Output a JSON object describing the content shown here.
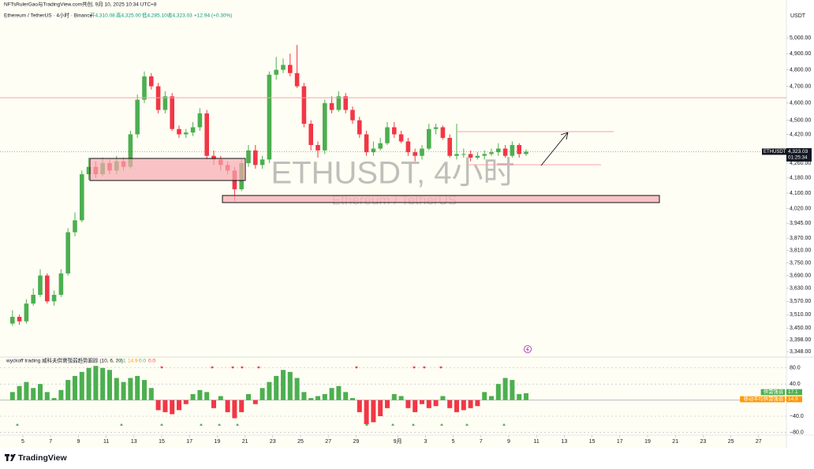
{
  "header": {
    "attribution": "NFTsRulerGao与TradingView.com共创, 9月 10, 2025 10:34 UTC+8",
    "symbol": "Ethereum / TetherUS · 4小时 · Binance",
    "open": "开4,310.08",
    "high": "高4,325.00",
    "low": "低4,285.10",
    "close": "收4,323.03",
    "change": "+12.94 (+0.30%)"
  },
  "brand": "TradingView",
  "chart_data": [
    {
      "type": "candlestick",
      "watermark_title": "ETHUSDT, 4小时",
      "watermark_subtitle": "Ethereum / TetherUS",
      "axis_unit": "USDT",
      "log_scale": true,
      "up_color": "#4caf50",
      "down_color": "#f23645",
      "open": [
        3470,
        3500,
        3480,
        3560,
        3600,
        3690,
        3570,
        3600,
        3700,
        3900,
        3960,
        4200,
        4240,
        4200,
        4260,
        4220,
        4270,
        4240,
        4420,
        4620,
        4760,
        4700,
        4560,
        4640,
        4450,
        4420,
        4430,
        4460,
        4540,
        4300,
        4280,
        4250,
        4220,
        4120,
        4260,
        4330,
        4250,
        4280,
        4770,
        4800,
        4830,
        4780,
        4700,
        4480,
        4360,
        4330,
        4600,
        4560,
        4640,
        4560,
        4500,
        4420,
        4320,
        4340,
        4370,
        4460,
        4420,
        4380,
        4320,
        4300,
        4340,
        4450,
        4460,
        4400,
        4300,
        4310,
        4310,
        4290,
        4300,
        4310,
        4320,
        4340,
        4300,
        4360,
        4310
      ],
      "high": [
        3530,
        3510,
        3580,
        3630,
        3720,
        3700,
        3620,
        3720,
        3920,
        4000,
        4220,
        4290,
        4270,
        4290,
        4280,
        4300,
        4290,
        4440,
        4650,
        4790,
        4780,
        4720,
        4670,
        4660,
        4470,
        4450,
        4490,
        4570,
        4560,
        4330,
        4300,
        4270,
        4240,
        4280,
        4360,
        4360,
        4300,
        4790,
        4880,
        4870,
        4900,
        4955,
        4720,
        4500,
        4380,
        4620,
        4640,
        4670,
        4660,
        4580,
        4520,
        4440,
        4380,
        4400,
        4490,
        4490,
        4440,
        4400,
        4340,
        4360,
        4480,
        4480,
        4470,
        4420,
        4480,
        4340,
        4330,
        4320,
        4330,
        4340,
        4370,
        4360,
        4380,
        4370,
        4335
      ],
      "low": [
        3460,
        3465,
        3470,
        3550,
        3590,
        3560,
        3550,
        3590,
        3690,
        3880,
        3950,
        4170,
        4180,
        4190,
        4200,
        4200,
        4220,
        4230,
        4400,
        4600,
        4680,
        4540,
        4540,
        4440,
        4400,
        4400,
        4410,
        4440,
        4280,
        4250,
        4220,
        4200,
        4060,
        4110,
        4240,
        4230,
        4230,
        4260,
        4740,
        4780,
        4760,
        4690,
        4460,
        4330,
        4290,
        4310,
        4540,
        4550,
        4540,
        4480,
        4400,
        4300,
        4300,
        4330,
        4360,
        4400,
        4370,
        4300,
        4270,
        4280,
        4330,
        4420,
        4390,
        4290,
        4280,
        4290,
        4270,
        4280,
        4280,
        4300,
        4300,
        4290,
        4290,
        4290,
        4300
      ],
      "close": [
        3500,
        3480,
        3560,
        3600,
        3690,
        3570,
        3600,
        3700,
        3900,
        3960,
        4200,
        4240,
        4200,
        4260,
        4220,
        4270,
        4240,
        4420,
        4620,
        4760,
        4700,
        4560,
        4640,
        4450,
        4420,
        4430,
        4460,
        4540,
        4300,
        4280,
        4250,
        4220,
        4120,
        4260,
        4330,
        4250,
        4280,
        4770,
        4800,
        4830,
        4780,
        4700,
        4480,
        4360,
        4330,
        4600,
        4560,
        4640,
        4560,
        4500,
        4420,
        4320,
        4340,
        4370,
        4460,
        4420,
        4380,
        4320,
        4300,
        4340,
        4450,
        4460,
        4400,
        4300,
        4310,
        4310,
        4290,
        4300,
        4310,
        4320,
        4340,
        4300,
        4360,
        4310,
        4323.03
      ],
      "last_price": {
        "symbol": "ETHUSDT",
        "label": "4,323.03",
        "countdown": "01:25:34"
      },
      "ylim": [
        3328,
        5185
      ],
      "yticks": [
        {
          "value": 5000,
          "label": "5,000.00"
        },
        {
          "value": 4900,
          "label": "4,900.00"
        },
        {
          "value": 4800,
          "label": "4,800.00"
        },
        {
          "value": 4700,
          "label": "4,700.00"
        },
        {
          "value": 4600,
          "label": "4,600.00"
        },
        {
          "value": 4500,
          "label": "4,500.00"
        },
        {
          "value": 4420,
          "label": "4,420.00"
        },
        {
          "value": 4260,
          "label": "4,260.00"
        },
        {
          "value": 4180,
          "label": "4,180.00"
        },
        {
          "value": 4100,
          "label": "4,100.00"
        },
        {
          "value": 4020,
          "label": "4,020.00"
        },
        {
          "value": 3945,
          "label": "3,945.00"
        },
        {
          "value": 3870,
          "label": "3,870.00"
        },
        {
          "value": 3810,
          "label": "3,810.00"
        },
        {
          "value": 3750,
          "label": "3,750.00"
        },
        {
          "value": 3690,
          "label": "3,690.00"
        },
        {
          "value": 3630,
          "label": "3,630.00"
        },
        {
          "value": 3570,
          "label": "3,570.00"
        },
        {
          "value": 3510,
          "label": "3,510.00"
        },
        {
          "value": 3450,
          "label": "3,450.00"
        },
        {
          "value": 3398,
          "label": "3,398.00"
        },
        {
          "value": 3348,
          "label": "3,348.00"
        }
      ],
      "xticks": [
        {
          "value": 2,
          "label": "5"
        },
        {
          "value": 6,
          "label": "7"
        },
        {
          "value": 10,
          "label": "9"
        },
        {
          "value": 14,
          "label": "11"
        },
        {
          "value": 18,
          "label": "13"
        },
        {
          "value": 22,
          "label": "15"
        },
        {
          "value": 26,
          "label": "17"
        },
        {
          "value": 30,
          "label": "19"
        },
        {
          "value": 34,
          "label": "21"
        },
        {
          "value": 38,
          "label": "23"
        },
        {
          "value": 42,
          "label": "25"
        },
        {
          "value": 46,
          "label": "27"
        },
        {
          "value": 50,
          "label": "29"
        },
        {
          "value": 56,
          "label": "9月"
        },
        {
          "value": 60,
          "label": "3"
        },
        {
          "value": 64,
          "label": "5"
        },
        {
          "value": 68,
          "label": "7"
        },
        {
          "value": 72,
          "label": "9"
        },
        {
          "value": 76,
          "label": "11"
        },
        {
          "value": 80,
          "label": "13"
        },
        {
          "value": 84,
          "label": "15"
        },
        {
          "value": 88,
          "label": "17"
        },
        {
          "value": 92,
          "label": "19"
        },
        {
          "value": 96,
          "label": "21"
        },
        {
          "value": 100,
          "label": "23"
        },
        {
          "value": 104,
          "label": "25"
        },
        {
          "value": 108,
          "label": "27"
        }
      ]
    },
    {
      "type": "bar",
      "title": "wyckoff trading 威科夫供需强弱趋势跟踪 (10, 6, 20)",
      "legend_values": [
        "17.1",
        "14.9",
        "0.0",
        "0.0"
      ],
      "series": [
        {
          "name": "供需强弱",
          "color": "#4caf50",
          "negative_color": "#f23645",
          "values": [
            20,
            35,
            45,
            30,
            40,
            20,
            5,
            25,
            50,
            60,
            70,
            80,
            85,
            80,
            75,
            55,
            45,
            55,
            60,
            50,
            30,
            -25,
            -30,
            -35,
            -25,
            -10,
            15,
            25,
            20,
            -20,
            10,
            -30,
            -45,
            -30,
            15,
            -10,
            30,
            45,
            60,
            75,
            70,
            55,
            20,
            5,
            10,
            15,
            30,
            35,
            20,
            5,
            -30,
            -60,
            -55,
            -40,
            -20,
            15,
            10,
            -20,
            -30,
            -10,
            -20,
            -15,
            10,
            -20,
            -30,
            -25,
            -20,
            -15,
            20,
            10,
            40,
            55,
            50,
            15,
            17.1
          ]
        }
      ],
      "value_tags": [
        {
          "name": "供需强弱",
          "label": "17.1",
          "color": "#4caf50"
        },
        {
          "name": "移动平均供需强弱",
          "label": "14.9",
          "color": "#ff9800"
        }
      ],
      "ylim": [
        -87,
        103
      ],
      "yticks": [
        {
          "value": 80,
          "label": "80.0"
        },
        {
          "value": 40,
          "label": "40.0"
        },
        {
          "value": -40,
          "label": "−40.0"
        },
        {
          "value": -80,
          "label": "−80.0"
        }
      ]
    }
  ]
}
